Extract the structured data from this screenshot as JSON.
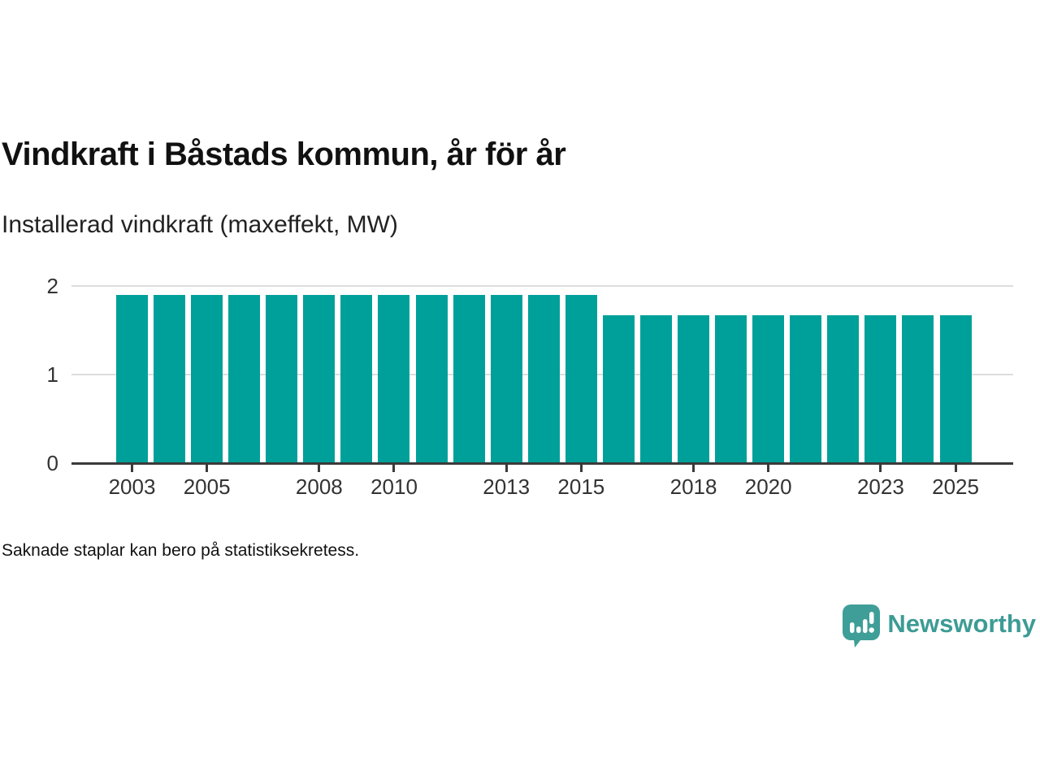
{
  "header": {
    "title": "Vindkraft i Båstads kommun, år för år",
    "subtitle": "Installerad vindkraft (maxeffekt, MW)"
  },
  "footnote": "Saknade staplar kan bero på statistiksekretess.",
  "branding": {
    "name": "Newsworthy",
    "logo_icon": "bar-chart-speech-bubble-icon",
    "logo_color": "#3f9e98",
    "text_color": "#3d9b95"
  },
  "colors": {
    "bar": "#00a09a",
    "gridline": "#dddddd",
    "axis": "#3a3a3a",
    "title_text": "#111111",
    "tick_text": "#333333"
  },
  "chart_data": {
    "type": "bar",
    "title": "Vindkraft i Båstads kommun, år för år",
    "subtitle": "Installerad vindkraft (maxeffekt, MW)",
    "xlabel": "",
    "ylabel": "Installerad vindkraft (maxeffekt, MW)",
    "categories": [
      "2003",
      "2004",
      "2005",
      "2006",
      "2007",
      "2008",
      "2009",
      "2010",
      "2011",
      "2012",
      "2013",
      "2014",
      "2015",
      "2016",
      "2017",
      "2018",
      "2019",
      "2020",
      "2021",
      "2022",
      "2023",
      "2024",
      "2025"
    ],
    "values": [
      1.9,
      1.9,
      1.9,
      1.9,
      1.9,
      1.9,
      1.9,
      1.9,
      1.9,
      1.9,
      1.9,
      1.9,
      1.9,
      1.67,
      1.67,
      1.67,
      1.67,
      1.67,
      1.67,
      1.67,
      1.67,
      1.67,
      1.67
    ],
    "ylim": [
      0,
      2
    ],
    "y_ticks": [
      0,
      1,
      2
    ],
    "x_tick_labels": [
      "2003",
      "2005",
      "2008",
      "2010",
      "2013",
      "2015",
      "2018",
      "2020",
      "2023",
      "2025"
    ],
    "grid": "horizontal-only",
    "legend": "none",
    "bar_color": "#00a09a"
  }
}
